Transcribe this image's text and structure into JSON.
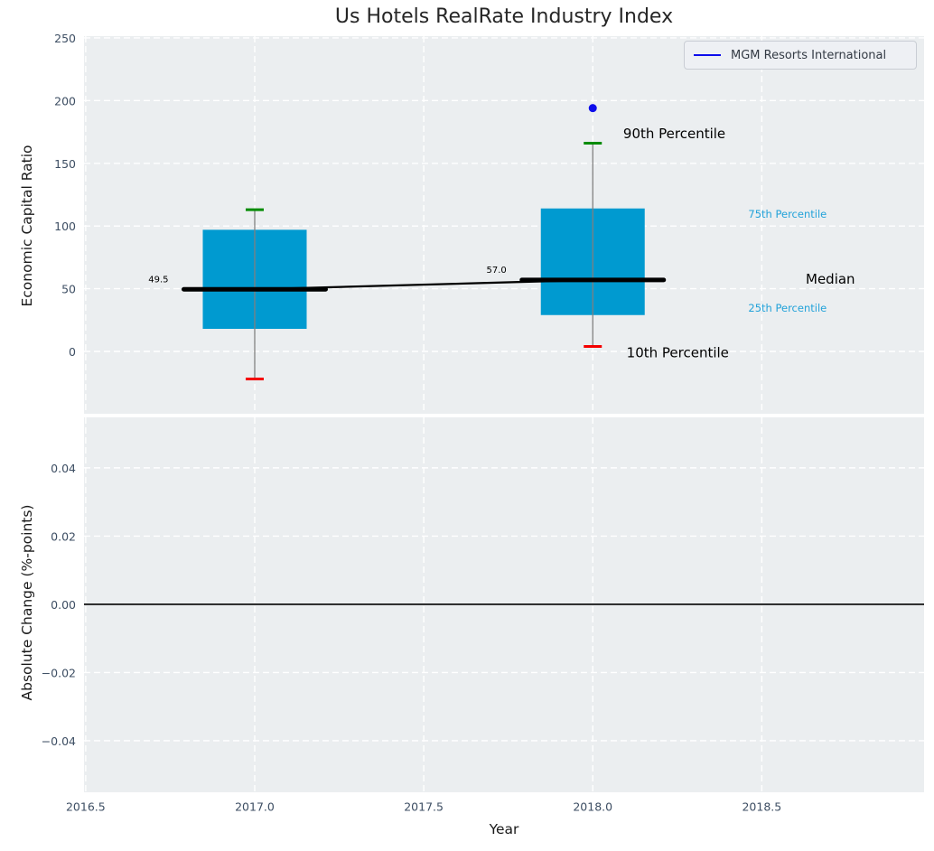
{
  "title": "Us Hotels RealRate Industry Index",
  "legend": {
    "label": "MGM Resorts International",
    "line_color": "#0d0deb"
  },
  "colors": {
    "figure_bg": "#ffffff",
    "axes_bg": "#ebeef0",
    "grid": "#ffffff",
    "tick_label": "#3d4e63",
    "axis_label": "#1a1a1a",
    "box_fill": "#009ad0",
    "whisker": "#808080",
    "p90_cap": "#008b00",
    "p10_cap": "#f40000",
    "median_line": "#000000",
    "point": "#0d0deb",
    "percentile_text": "#22a2d9",
    "zero_line": "#000000"
  },
  "chart_data": [
    {
      "type": "boxplot",
      "title": "Us Hotels RealRate Industry Index",
      "ylabel": "Economic Capital Ratio",
      "xlim": [
        2016.495,
        2018.98
      ],
      "ylim": [
        -49.7,
        251.4
      ],
      "ytick_values": [
        0,
        50,
        100,
        150,
        200,
        250
      ],
      "ytick_labels": [
        "0",
        "50",
        "100",
        "150",
        "200",
        "250"
      ],
      "xtick_values": [
        2016.5,
        2017.0,
        2017.5,
        2018.0,
        2018.5
      ],
      "show_xtick_labels": false,
      "grid": true,
      "legend_position": "upper right",
      "boxes": [
        {
          "x": 2017.0,
          "p10": -22,
          "p25": 18,
          "median": 49.5,
          "p75": 97,
          "p90": 113,
          "median_label": "49.5"
        },
        {
          "x": 2018.0,
          "p10": 4,
          "p25": 29,
          "median": 57.0,
          "p75": 114,
          "p90": 166,
          "median_label": "57.0"
        }
      ],
      "median_trend": [
        {
          "x": 2017.0,
          "y": 49.5
        },
        {
          "x": 2018.0,
          "y": 57.0
        }
      ],
      "points": [
        {
          "series": "MGM Resorts International",
          "x": 2018.0,
          "y": 194
        }
      ],
      "annotations": [
        {
          "text": "90th Percentile",
          "x": 2018.09,
          "y": 173.5,
          "color": "#000000",
          "size": 15
        },
        {
          "text": "10th Percentile",
          "x": 2018.1,
          "y": -1.0,
          "color": "#000000",
          "size": 15
        },
        {
          "text": "75th Percentile",
          "x": 2018.46,
          "y": 109.5,
          "color": "#22a2d9",
          "size": 11.5
        },
        {
          "text": "25th Percentile",
          "x": 2018.46,
          "y": 34.5,
          "color": "#22a2d9",
          "size": 11.5
        },
        {
          "text": "Median",
          "x": 2018.63,
          "y": 57.5,
          "color": "#000000",
          "size": 15
        }
      ]
    },
    {
      "type": "line",
      "ylabel": "Absolute Change (%-points)",
      "xlabel": "Year",
      "xlim": [
        2016.495,
        2018.98
      ],
      "ylim": [
        -0.0551,
        0.0548
      ],
      "ytick_values": [
        0.04,
        0.02,
        0.0,
        -0.02,
        -0.04
      ],
      "ytick_labels": [
        "0.04",
        "0.02",
        "0.00",
        "−0.02",
        "−0.04"
      ],
      "xtick_values": [
        2016.5,
        2017.0,
        2017.5,
        2018.0,
        2018.5
      ],
      "xtick_labels": [
        "2016.5",
        "2017.0",
        "2017.5",
        "2018.0",
        "2018.5"
      ],
      "show_xtick_labels": true,
      "grid": true,
      "hlines": [
        {
          "y": 0.0,
          "color": "#000000",
          "width": 1.6
        }
      ]
    }
  ]
}
